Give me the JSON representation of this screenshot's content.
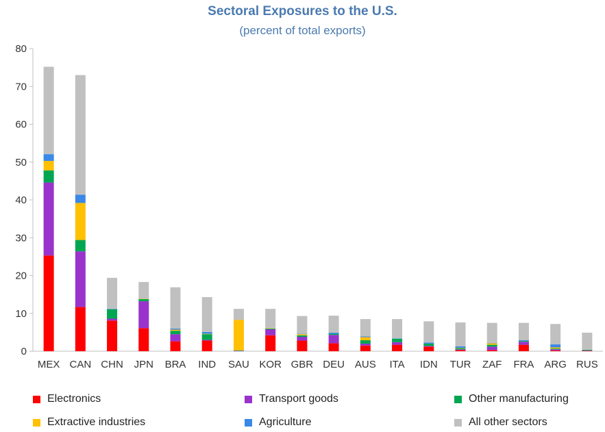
{
  "chart_data": {
    "type": "bar",
    "stacked": true,
    "title": "Sectoral Exposures to the U.S.",
    "subtitle": "(percent of total exports)",
    "ylim": [
      0,
      80
    ],
    "yticks": [
      0,
      10,
      20,
      30,
      40,
      50,
      60,
      70,
      80
    ],
    "grid": false,
    "legend_position": "bottom",
    "categories": [
      "MEX",
      "CAN",
      "CHN",
      "JPN",
      "BRA",
      "IND",
      "SAU",
      "KOR",
      "GBR",
      "DEU",
      "AUS",
      "ITA",
      "IDN",
      "TUR",
      "ZAF",
      "FRA",
      "ARG",
      "RUS"
    ],
    "series": [
      {
        "name": "Electronics",
        "color": "#ff0000",
        "values": [
          25.3,
          11.7,
          8.1,
          6.1,
          2.6,
          2.8,
          0.0,
          4.2,
          2.8,
          2.1,
          1.5,
          1.7,
          1.2,
          0.3,
          0.3,
          1.7,
          0.2,
          0.1
        ]
      },
      {
        "name": "Transport goods",
        "color": "#9933cc",
        "values": [
          19.3,
          14.7,
          0.5,
          7.1,
          1.9,
          0.2,
          0.1,
          1.6,
          1.0,
          2.2,
          0.5,
          0.7,
          0.2,
          0.2,
          0.9,
          0.8,
          0.3,
          0.1
        ]
      },
      {
        "name": "Other manufacturing",
        "color": "#00a651",
        "values": [
          3.2,
          3.0,
          2.5,
          0.6,
          0.9,
          1.5,
          0.1,
          0.2,
          0.4,
          0.3,
          0.9,
          0.9,
          0.6,
          0.3,
          0.5,
          0.2,
          0.2,
          0.2
        ]
      },
      {
        "name": "Extractive industries",
        "color": "#ffc000",
        "values": [
          2.5,
          9.8,
          0.0,
          0.1,
          0.3,
          0.1,
          8.1,
          0.1,
          0.3,
          0.0,
          0.8,
          0.0,
          0.0,
          0.1,
          0.4,
          0.0,
          0.3,
          0.0
        ]
      },
      {
        "name": "Agriculture",
        "color": "#3a88e8",
        "values": [
          1.8,
          2.2,
          0.1,
          0.0,
          0.3,
          0.5,
          0.0,
          0.0,
          0.1,
          0.3,
          0.2,
          0.1,
          0.3,
          0.4,
          0.1,
          0.2,
          0.8,
          0.0
        ]
      },
      {
        "name": "All other sectors",
        "color": "#c0c0c0",
        "values": [
          23.1,
          31.6,
          8.2,
          4.4,
          10.9,
          9.2,
          2.9,
          5.1,
          4.7,
          4.5,
          4.6,
          5.1,
          5.6,
          6.3,
          5.3,
          4.6,
          5.4,
          4.5
        ]
      }
    ]
  }
}
